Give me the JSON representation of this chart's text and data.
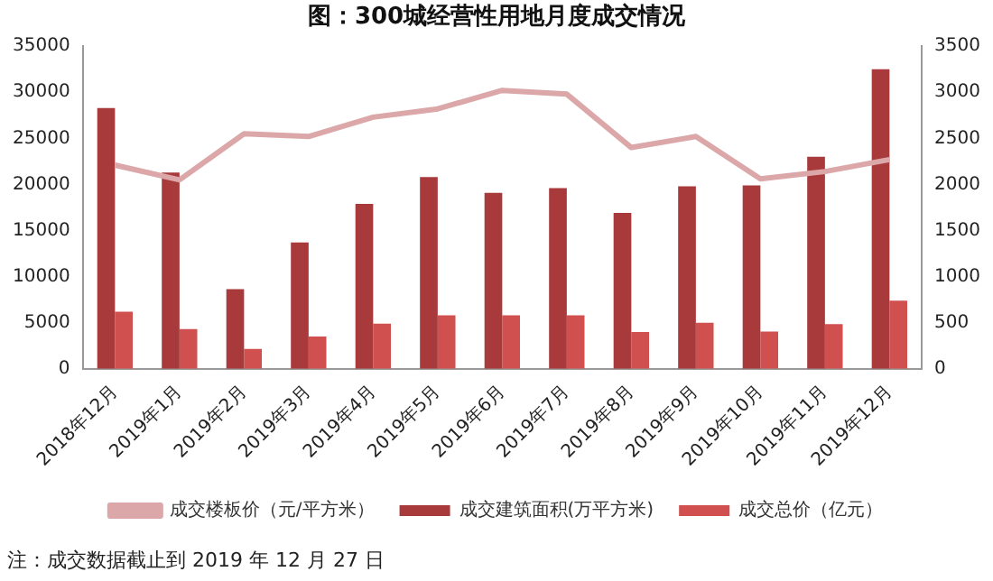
{
  "chart_data": {
    "type": "bar",
    "title": "图：300城经营性用地月度成交情况",
    "categories": [
      "2018年12月",
      "2019年1月",
      "2019年2月",
      "2019年3月",
      "2019年4月",
      "2019年5月",
      "2019年6月",
      "2019年7月",
      "2019年8月",
      "2019年9月",
      "2019年10月",
      "2019年11月",
      "2019年12月"
    ],
    "series": [
      {
        "name": "成交建筑面积(万平方米)",
        "color": "#a83a3c",
        "values": [
          28300,
          21300,
          8650,
          13700,
          17900,
          20800,
          19100,
          19600,
          16900,
          19800,
          19900,
          23000,
          32500
        ]
      },
      {
        "name": "成交总价（亿元）",
        "color": "#d0504f",
        "values": [
          6200,
          4300,
          2150,
          3500,
          4900,
          5800,
          5800,
          5800,
          4000,
          5000,
          4050,
          4850,
          7400
        ]
      },
      {
        "name": "成交楼板价（元/平方米）",
        "type": "line",
        "axis": "y2",
        "color": "#dba7a8",
        "values": [
          2210,
          2050,
          2550,
          2520,
          2730,
          2820,
          3020,
          2980,
          2400,
          2520,
          2060,
          2140,
          2270
        ]
      }
    ],
    "ylim": [
      0,
      35000
    ],
    "yticks": [
      0,
      5000,
      10000,
      15000,
      20000,
      25000,
      30000,
      35000
    ],
    "y2lim": [
      0,
      3500
    ],
    "y2ticks": [
      0,
      500,
      1000,
      1500,
      2000,
      2500,
      3000,
      3500
    ],
    "grid": false,
    "legend": "bottom",
    "annotations": [
      "注：成交数据截止到 2019 年 12 月 27 日"
    ]
  }
}
